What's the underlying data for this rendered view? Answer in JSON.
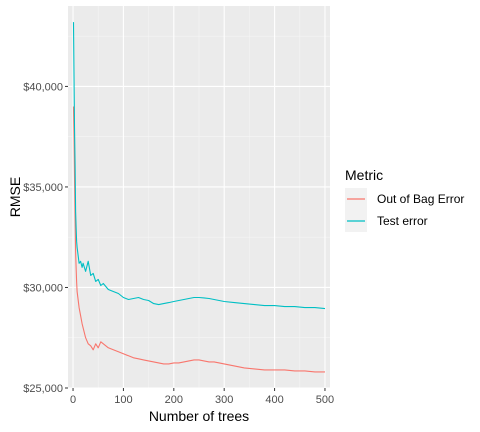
{
  "chart_data": {
    "type": "line",
    "title": "",
    "xlabel": "Number of trees",
    "ylabel": "RMSE",
    "xlim": [
      -10,
      510
    ],
    "ylim": [
      25000,
      44000
    ],
    "x_ticks": [
      0,
      100,
      200,
      300,
      400,
      500
    ],
    "x_tick_labels": [
      "0",
      "100",
      "200",
      "300",
      "400",
      "500"
    ],
    "y_ticks": [
      25000,
      30000,
      35000,
      40000
    ],
    "y_tick_labels": [
      "$25,000",
      "$30,000",
      "$35,000",
      "$40,000"
    ],
    "grid": true,
    "legend": {
      "title": "Metric",
      "position": "right"
    },
    "series": [
      {
        "name": "Out of Bag Error",
        "color": "#F8766D",
        "x": [
          1,
          2,
          3,
          4,
          5,
          6,
          7,
          8,
          10,
          12,
          15,
          18,
          20,
          25,
          30,
          35,
          40,
          45,
          50,
          55,
          60,
          70,
          80,
          90,
          100,
          110,
          120,
          130,
          140,
          150,
          160,
          170,
          180,
          190,
          200,
          210,
          220,
          230,
          240,
          250,
          260,
          270,
          280,
          290,
          300,
          320,
          340,
          360,
          380,
          400,
          420,
          440,
          460,
          480,
          500
        ],
        "y": [
          39000,
          37500,
          35500,
          33500,
          31800,
          31000,
          30300,
          29800,
          29400,
          29000,
          28600,
          28200,
          28000,
          27500,
          27200,
          27100,
          26900,
          27200,
          27000,
          27300,
          27200,
          27000,
          26900,
          26800,
          26700,
          26600,
          26500,
          26450,
          26400,
          26350,
          26300,
          26250,
          26200,
          26200,
          26250,
          26250,
          26300,
          26350,
          26400,
          26400,
          26350,
          26300,
          26300,
          26250,
          26200,
          26100,
          26000,
          25950,
          25900,
          25900,
          25900,
          25850,
          25850,
          25800,
          25800
        ]
      },
      {
        "name": "Test error",
        "color": "#00BFC4",
        "x": [
          1,
          2,
          3,
          4,
          5,
          6,
          7,
          8,
          10,
          12,
          15,
          18,
          20,
          25,
          30,
          35,
          40,
          45,
          50,
          55,
          60,
          70,
          80,
          90,
          100,
          110,
          120,
          130,
          140,
          150,
          160,
          170,
          180,
          190,
          200,
          210,
          220,
          230,
          240,
          250,
          260,
          270,
          280,
          290,
          300,
          320,
          340,
          360,
          380,
          400,
          420,
          440,
          460,
          480,
          500
        ],
        "y": [
          43200,
          40500,
          38000,
          36000,
          33800,
          33000,
          32300,
          32000,
          31600,
          31200,
          31300,
          31000,
          31200,
          30800,
          31300,
          30600,
          30700,
          30300,
          30400,
          30100,
          30200,
          29900,
          29800,
          29700,
          29500,
          29400,
          29450,
          29500,
          29400,
          29350,
          29200,
          29150,
          29200,
          29250,
          29300,
          29350,
          29400,
          29450,
          29500,
          29500,
          29480,
          29450,
          29400,
          29350,
          29300,
          29250,
          29200,
          29150,
          29100,
          29100,
          29050,
          29050,
          29000,
          29000,
          28950
        ]
      }
    ]
  }
}
